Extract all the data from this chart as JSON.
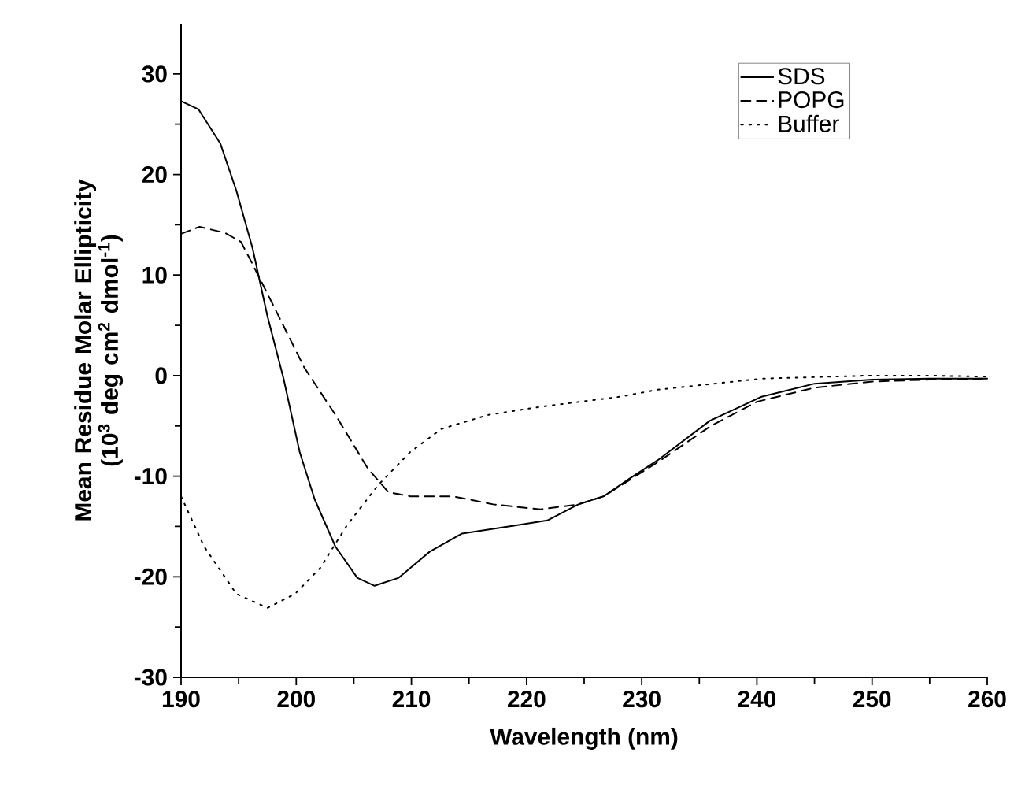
{
  "chart_data": {
    "type": "line",
    "xlabel": "Wavelength (nm)",
    "ylabel": "Mean Residue Molar Ellipticity (10$^{3}$ deg cm$^{2}$ dmol$^{-1}$)",
    "xlim": [
      190,
      260
    ],
    "ylim": [
      -30,
      35
    ],
    "xticks": [
      190,
      {
        "value": 195,
        "label": null
      },
      200,
      {
        "value": 205,
        "label": null
      },
      210,
      {
        "value": 215,
        "label": null
      },
      220,
      {
        "value": 225,
        "label": null
      },
      230,
      {
        "value": 235,
        "label": null
      },
      240,
      {
        "value": 245,
        "label": null
      },
      250,
      {
        "value": 255,
        "label": null
      },
      260
    ],
    "yticks": [
      -30,
      {
        "value": -25,
        "label": null
      },
      -20,
      {
        "value": -15,
        "label": null
      },
      -10,
      {
        "value": -5,
        "label": null
      },
      0,
      {
        "value": 5,
        "label": null
      },
      10,
      {
        "value": 15,
        "label": null
      },
      20,
      {
        "value": 25,
        "label": null
      },
      30
    ],
    "legend": "top right",
    "grid": false,
    "marker": "none",
    "series": [
      {
        "name": "SDS",
        "color": "#000000",
        "line_style": "solid",
        "x": [
          190,
          191.5,
          193.4,
          194.8,
          196.2,
          197.5,
          198.9,
          200.3,
          201.6,
          203.4,
          205.3,
          206.8,
          208.9,
          211.6,
          214.4,
          219,
          221.8,
          224.5,
          226.7,
          229,
          231.4,
          235.9,
          240.4,
          245,
          250,
          255,
          260
        ],
        "values": [
          27.3,
          26.5,
          23.1,
          18.4,
          12.7,
          5.9,
          -0.3,
          -7.6,
          -12.3,
          -17,
          -20.1,
          -20.9,
          -20.1,
          -17.5,
          -15.7,
          -14.9,
          -14.4,
          -12.8,
          -12,
          -10.2,
          -8.4,
          -4.5,
          -2.1,
          -0.8,
          -0.4,
          -0.3,
          -0.3
        ]
      },
      {
        "name": "POPG",
        "color": "#000000",
        "line_style": "dashed",
        "x": [
          190,
          191.6,
          193.8,
          195.2,
          196.2,
          198,
          200.7,
          203.4,
          206.2,
          208,
          209.9,
          213.6,
          217.1,
          221.2,
          224.5,
          226.7,
          231.4,
          236,
          240,
          245,
          250,
          255,
          260
        ],
        "values": [
          14.1,
          14.8,
          14.2,
          13.3,
          11.1,
          7,
          0.8,
          -3.9,
          -9.2,
          -11.6,
          -12,
          -12,
          -12.8,
          -13.3,
          -12.8,
          -12,
          -8.6,
          -5,
          -2.6,
          -1.2,
          -0.6,
          -0.4,
          -0.3
        ]
      },
      {
        "name": "Buffer",
        "color": "#000000",
        "line_style": "dotted",
        "x": [
          190,
          192,
          194.8,
          197.5,
          199.9,
          202.1,
          204.4,
          207.1,
          209.9,
          212.6,
          216.7,
          221.2,
          228.1,
          231.4,
          240.4,
          249.6,
          255,
          260
        ],
        "values": [
          -12,
          -17,
          -21.7,
          -23.1,
          -21.7,
          -19.1,
          -14.9,
          -10.9,
          -7.6,
          -5.3,
          -3.9,
          -3.1,
          -2.1,
          -1.4,
          -0.3,
          0,
          0,
          -0.1
        ]
      }
    ]
  }
}
